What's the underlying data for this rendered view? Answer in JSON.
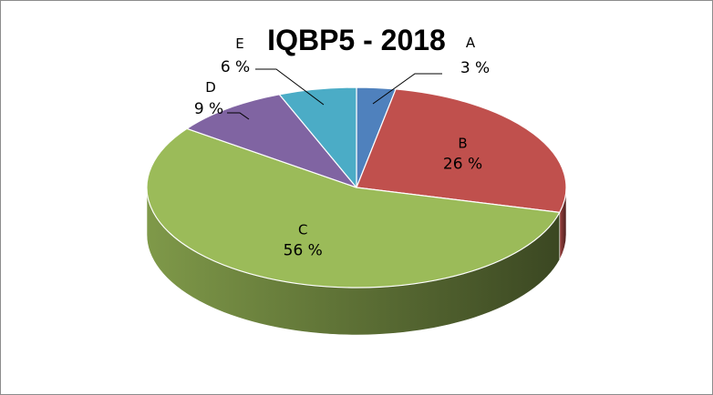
{
  "chart_data": {
    "type": "pie",
    "title": "IQBP5 - 2018",
    "three_d": true,
    "legend": "none",
    "slices": [
      {
        "category": "A",
        "value": 3,
        "label": "3 %",
        "color": "#4F81BD"
      },
      {
        "category": "B",
        "value": 26,
        "label": "26 %",
        "color": "#C0504D"
      },
      {
        "category": "C",
        "value": 56,
        "label": "56 %",
        "color": "#9BBB59"
      },
      {
        "category": "D",
        "value": 9,
        "label": "9 %",
        "color": "#8064A2"
      },
      {
        "category": "E",
        "value": 6,
        "label": "6 %",
        "color": "#4BACC6"
      }
    ]
  }
}
